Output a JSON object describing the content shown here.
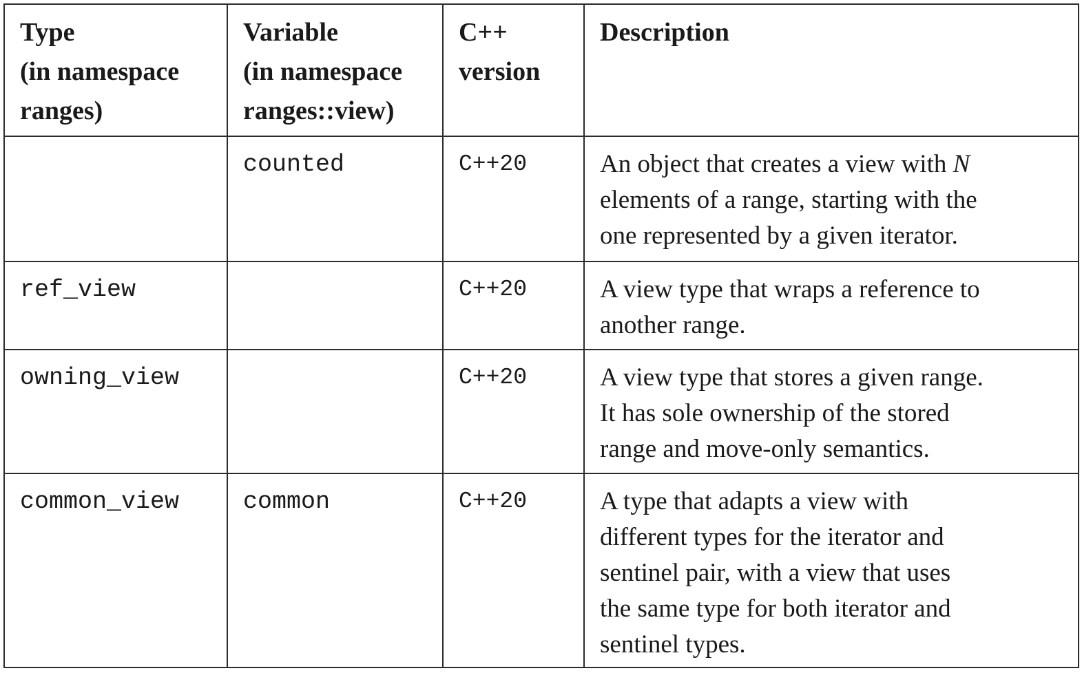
{
  "header": {
    "type": [
      "Type",
      "(in namespace",
      "ranges)"
    ],
    "variable": [
      "Variable",
      "(in namespace",
      "ranges::view)"
    ],
    "cpp": [
      "C++",
      "version"
    ],
    "description": [
      "Description"
    ]
  },
  "rows": [
    {
      "type": "",
      "variable": "counted",
      "cpp_version": "C++20",
      "description_before": "An object that creates a view with ",
      "description_italic": "N",
      "description_after": "\nelements of a range, starting with the\none represented by a given iterator."
    },
    {
      "type": "ref_view",
      "variable": "",
      "cpp_version": "C++20",
      "description": "A view type that wraps a reference to\nanother range."
    },
    {
      "type": "owning_view",
      "variable": "",
      "cpp_version": "C++20",
      "description": "A view type that stores a given range.\nIt has sole ownership of the stored\nrange and move-only semantics."
    },
    {
      "type": "common_view",
      "variable": "common",
      "cpp_version": "C++20",
      "description": "A type that adapts a view with\ndifferent types for the iterator and\nsentinel pair, with a view that uses\nthe same type for both iterator and\nsentinel types."
    }
  ]
}
